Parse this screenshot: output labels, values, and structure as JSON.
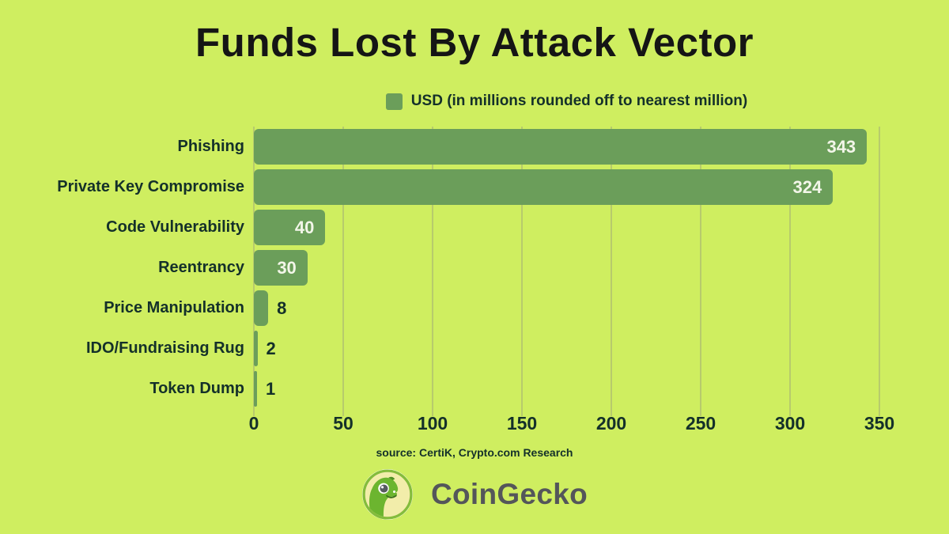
{
  "title": "Funds Lost By Attack Vector",
  "legend": {
    "label": "USD (in millions rounded off to nearest million)"
  },
  "chart_data": {
    "type": "bar",
    "orientation": "horizontal",
    "title": "Funds Lost By Attack Vector",
    "series_label": "USD (in millions rounded off to nearest million)",
    "categories": [
      "Phishing",
      "Private Key Compromise",
      "Code Vulnerability",
      "Reentrancy",
      "Price Manipulation",
      "IDO/Fundraising Rug",
      "Token Dump"
    ],
    "values": [
      343,
      324,
      40,
      30,
      8,
      2,
      1
    ],
    "xlim": [
      0,
      350
    ],
    "xticks": [
      0,
      50,
      100,
      150,
      200,
      250,
      300,
      350
    ],
    "grid": true,
    "legend_position": "top",
    "value_labels": true
  },
  "source": "source: CertiK, Crypto.com Research",
  "footer": {
    "brand": "CoinGecko"
  },
  "colors": {
    "background": "#cfee60",
    "bar": "#6b9e5a",
    "grid": "#b7cb6c",
    "text_dark": "#14302a",
    "title": "#151515",
    "value_inside": "#f3f6e9",
    "brand_text": "#54565a",
    "logo_green": "#6cb52f",
    "logo_ring": "#84bc3c",
    "logo_inner": "#f2edaa"
  }
}
